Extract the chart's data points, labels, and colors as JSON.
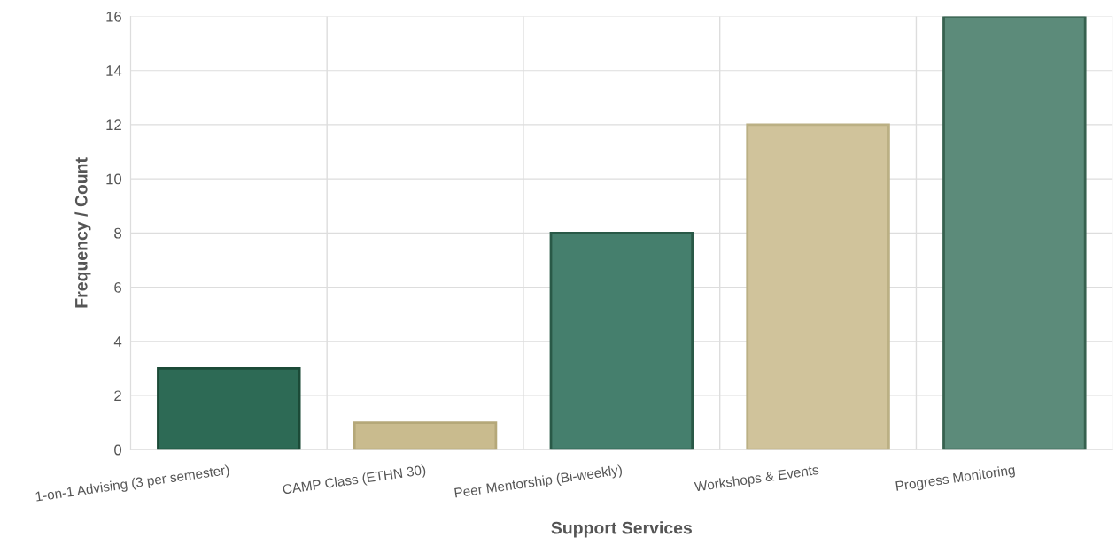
{
  "chart_data": {
    "type": "bar",
    "xlabel": "Support Services",
    "ylabel": "Frequency / Count",
    "categories": [
      "1-on-1 Advising (3 per semester)",
      "CAMP Class (ETHN 30)",
      "Peer Mentorship (Bi-weekly)",
      "Workshops & Events",
      "Progress Monitoring"
    ],
    "values": [
      3,
      1,
      8,
      12,
      16
    ],
    "colors": [
      "#2d6a55",
      "#c9bb8e",
      "#457f6d",
      "#d0c39b",
      "#5c8b7a"
    ],
    "ylim": [
      0,
      16
    ],
    "yticks": [
      0,
      2,
      4,
      6,
      8,
      10,
      12,
      14,
      16
    ],
    "grid": true,
    "legend": false
  }
}
